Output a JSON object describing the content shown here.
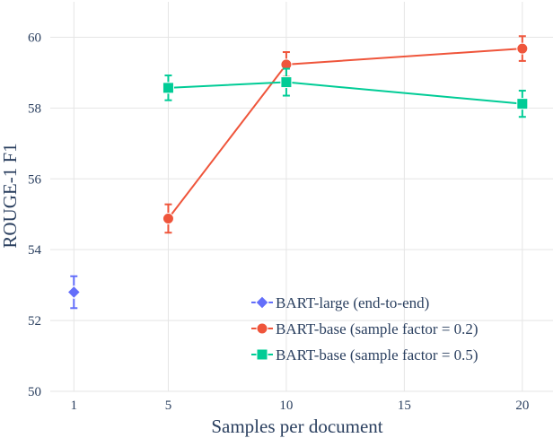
{
  "chart_data": {
    "type": "line",
    "xlabel": "Samples per document",
    "ylabel": "ROUGE-1 F1",
    "xlim": [
      0,
      21.3
    ],
    "ylim": [
      50,
      61
    ],
    "xticks": [
      1,
      5,
      10,
      15,
      20
    ],
    "yticks": [
      50,
      52,
      54,
      56,
      58,
      60
    ],
    "grid": true,
    "legend_position": "bottom-right",
    "series": [
      {
        "name": "BART-large (end-to-end)",
        "color": "#636efa",
        "marker": "diamond",
        "x": [
          1
        ],
        "y": [
          52.8
        ],
        "err": [
          0.45
        ]
      },
      {
        "name": "BART-base (sample factor = 0.2)",
        "color": "#ef553b",
        "marker": "circle",
        "x": [
          5,
          10,
          20
        ],
        "y": [
          54.88,
          59.23,
          59.68
        ],
        "err": [
          0.4,
          0.35,
          0.35
        ]
      },
      {
        "name": "BART-base (sample factor = 0.5)",
        "color": "#00cc96",
        "marker": "square",
        "x": [
          5,
          10,
          20
        ],
        "y": [
          58.57,
          58.73,
          58.12
        ],
        "err": [
          0.35,
          0.38,
          0.37
        ]
      }
    ]
  }
}
